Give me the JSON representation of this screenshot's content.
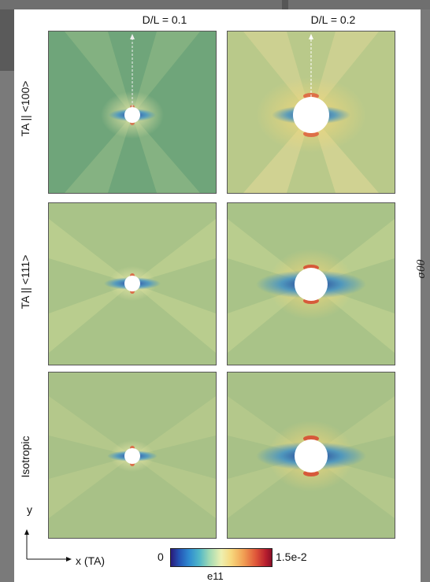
{
  "figure": {
    "column_headers": [
      "D/L = 0.1",
      "D/L = 0.2"
    ],
    "row_labels": [
      "TA || <100>",
      "TA || <111>",
      "Isotropic"
    ],
    "colorbar": {
      "min_label": "0",
      "max_label": "1.5e-2",
      "title": "e11",
      "colors": [
        "#2a1b7a",
        "#2452b4",
        "#2f8bd0",
        "#4fb6c8",
        "#9fd9b5",
        "#eef0b0",
        "#f7d77c",
        "#f1a054",
        "#e0583a",
        "#b81f2e",
        "#8a0f28"
      ]
    },
    "side_label": "σθθ",
    "axes": {
      "y_label": "y",
      "x_label": "x (TA)"
    },
    "panel_colors": {
      "row1_col1_bg": "#6fa57a",
      "row1_col2_bg": "#b9c98a",
      "row2_bg": "#a9c388",
      "row3_bg": "#a8c187",
      "hole": "#ffffff",
      "low_lobe": "#2a4fa8",
      "high_lobe": "#d8452e"
    }
  }
}
